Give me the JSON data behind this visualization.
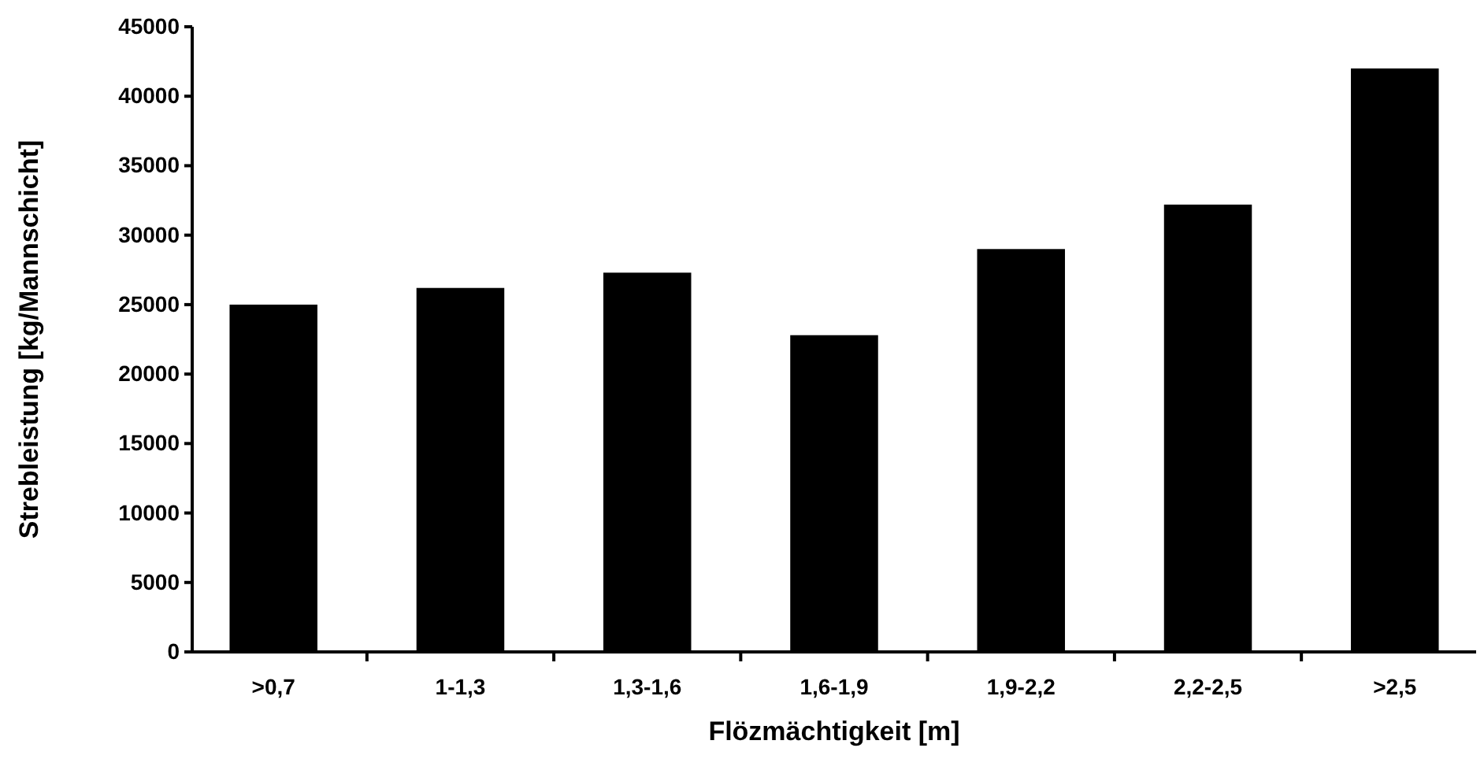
{
  "chart_data": {
    "type": "bar",
    "xlabel": "Flözmächtigkeit [m]",
    "ylabel": "Strebleistung [kg/Mannschicht]",
    "categories": [
      ">0,7",
      "1-1,3",
      "1,3-1,6",
      "1,6-1,9",
      "1,9-2,2",
      "2,2-2,5",
      ">2,5"
    ],
    "values": [
      25000,
      26200,
      27300,
      22800,
      29000,
      32200,
      42000
    ],
    "color": "#000000",
    "ylim": [
      0,
      45000
    ],
    "yticks": [
      0,
      5000,
      10000,
      15000,
      20000,
      25000,
      30000,
      35000,
      40000,
      45000
    ],
    "grid": false
  }
}
